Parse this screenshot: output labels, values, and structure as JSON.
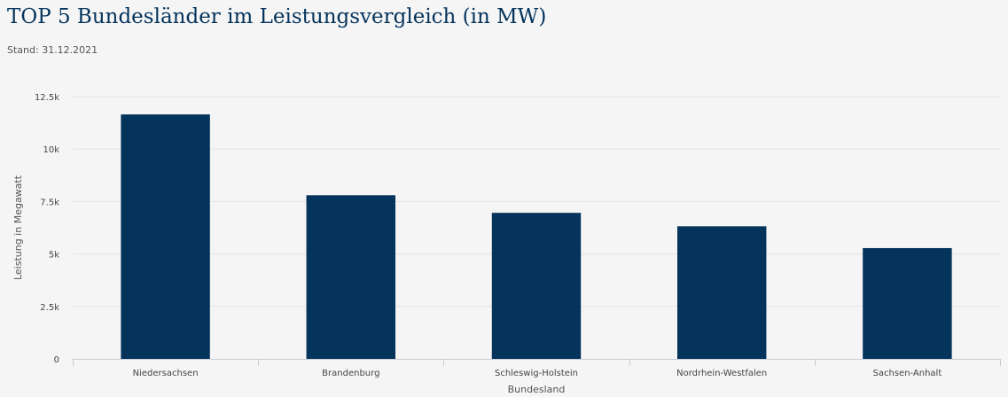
{
  "header": {
    "title": "TOP 5 Bundesländer im Leistungsvergleich (in MW)",
    "subtitle": "Stand: 31.12.2021"
  },
  "chart_data": {
    "type": "bar",
    "title": "TOP 5 Bundesländer im Leistungsvergleich (in MW)",
    "subtitle": "Stand: 31.12.2021",
    "xlabel": "Bundesland",
    "ylabel": "Leistung in Megawatt",
    "categories": [
      "Niedersachsen",
      "Brandenburg",
      "Schleswig-Holstein",
      "Nordrhein-Westfalen",
      "Sachsen-Anhalt"
    ],
    "series": [
      {
        "values": [
          11650,
          7800,
          6960,
          6320,
          5280
        ],
        "color": "#04335c"
      }
    ],
    "ylim": [
      0,
      12500
    ],
    "yticks": [
      0,
      2500,
      5000,
      7500,
      10000,
      12500
    ],
    "ytick_labels": [
      "0",
      "2.5k",
      "5k",
      "7.5k",
      "10k",
      "12.5k"
    ],
    "grid": true,
    "legend": "none"
  },
  "colors": {
    "title": "#04335c",
    "bar": "#04335c",
    "grid": "#e3e3e3",
    "background": "#f5f5f5"
  }
}
